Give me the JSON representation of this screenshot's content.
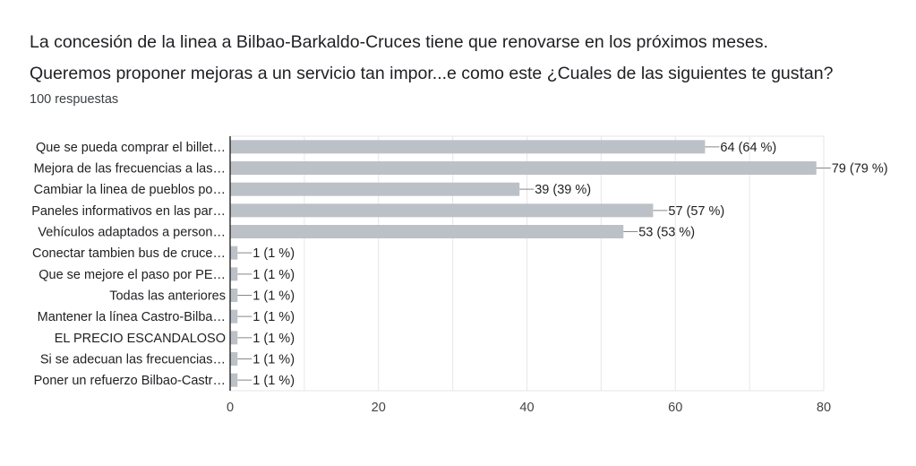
{
  "title_line1": "La concesión de la linea a Bilbao-Barkaldo-Cruces tiene que renovarse en los próximos meses.",
  "title_line2": "Queremos proponer mejoras a un servicio tan impor...e como este ¿Cuales de las siguientes te gustan?",
  "subtitle": "100 respuestas",
  "colors": {
    "bar": "#bcc1c7",
    "grid": "#e6e6e6",
    "axis": "#333333",
    "leader": "#888888"
  },
  "chart_data": {
    "type": "bar",
    "orientation": "horizontal",
    "categories": [
      "Que se pueda comprar el billet…",
      "Mejora de las frecuencias a las…",
      "Cambiar la linea de pueblos po…",
      "Paneles informativos en las par…",
      "Vehículos adaptados a person…",
      "Conectar tambien bus de cruce…",
      "Que se mejore el paso por PE…",
      "Todas las anteriores",
      "Mantener la línea Castro-Bilba…",
      "EL PRECIO ESCANDALOSO",
      "Si se adecuan las frecuencias…",
      "Poner un refuerzo Bilbao-Castr…"
    ],
    "values": [
      64,
      79,
      39,
      57,
      53,
      1,
      1,
      1,
      1,
      1,
      1,
      1
    ],
    "data_labels": [
      "64 (64 %)",
      "79 (79 %)",
      "39 (39 %)",
      "57 (57 %)",
      "53 (53 %)",
      "1 (1 %)",
      "1 (1 %)",
      "1 (1 %)",
      "1 (1 %)",
      "1 (1 %)",
      "1 (1 %)",
      "1 (1 %)"
    ],
    "x_ticks": [
      0,
      20,
      40,
      60,
      80
    ],
    "xlim": [
      0,
      80
    ],
    "grid": true
  }
}
